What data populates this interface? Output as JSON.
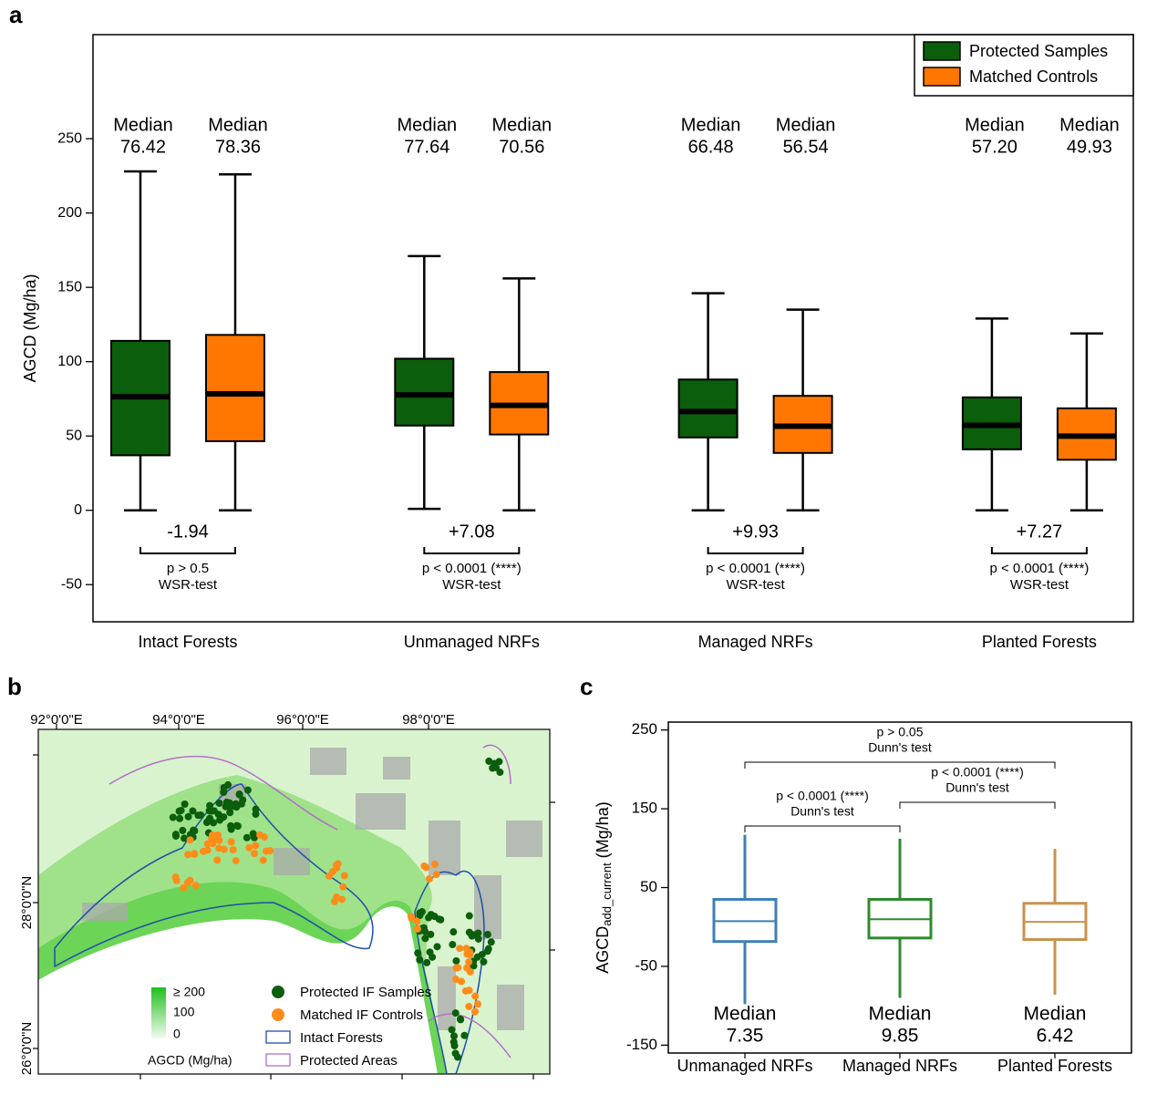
{
  "figure_labels": [
    "a",
    "b",
    "c"
  ],
  "chart_data": [
    {
      "type": "box",
      "ylabel": "AGCD (Mg/ha)",
      "categories": [
        "Intact Forests",
        "Unmanaged NRFs",
        "Managed NRFs",
        "Planted Forests"
      ],
      "ylim": [
        -75,
        320
      ],
      "yticks": [
        -50,
        0,
        50,
        100,
        150,
        200,
        250
      ],
      "median_label": "Median",
      "legend": "upper right",
      "series": [
        {
          "name": "Protected Samples",
          "color": "#0b5e0b",
          "whislo": [
            0,
            1,
            0,
            0
          ],
          "q1": [
            37,
            57,
            49,
            41
          ],
          "median": [
            76.42,
            77.64,
            66.48,
            57.2
          ],
          "median_labels": [
            "76.42",
            "77.64",
            "66.48",
            "57.20"
          ],
          "q3": [
            114,
            102,
            88,
            76
          ],
          "whishi": [
            228,
            171,
            146,
            129
          ]
        },
        {
          "name": "Matched Controls",
          "color": "#ff7700",
          "whislo": [
            0,
            0,
            0,
            0
          ],
          "q1": [
            46.5,
            51,
            38.6,
            34
          ],
          "median": [
            78.36,
            70.56,
            56.54,
            49.93
          ],
          "median_labels": [
            "78.36",
            "70.56",
            "56.54",
            "49.93"
          ],
          "q3": [
            118,
            93,
            77,
            68.6
          ],
          "whishi": [
            226,
            156,
            135,
            119
          ]
        }
      ],
      "differences": {
        "values": [
          -1.94,
          7.08,
          9.93,
          7.27
        ],
        "value_labels": [
          "-1.94",
          "+7.08",
          "+9.93",
          "+7.27"
        ]
      },
      "tests": [
        "p > 0.5",
        "p < 0.0001 (****)",
        "p < 0.0001 (****)",
        "p < 0.0001 (****)"
      ],
      "test_name": "WSR-test"
    },
    {
      "type": "box",
      "ylabel": "AGCD",
      "ylabel_subscript": "add_current",
      "ylabel_unit": "(Mg/ha)",
      "categories": [
        "Unmanaged NRFs",
        "Managed NRFs",
        "Planted Forests"
      ],
      "ylim": [
        -160,
        260
      ],
      "yticks": [
        -150,
        -50,
        50,
        150,
        250
      ],
      "median_label": "Median",
      "series": [
        {
          "colors": [
            "#3e7fb5",
            "#2e8b2e",
            "#c8924e"
          ],
          "whislo": [
            -98,
            -90,
            -86
          ],
          "q1": [
            -18.5,
            -14,
            -16
          ],
          "median": [
            7.35,
            9.85,
            6.42
          ],
          "q3": [
            35,
            35,
            30
          ],
          "whishi": [
            117,
            112,
            99
          ]
        }
      ],
      "comparisons": [
        {
          "label": "p > 0.05",
          "test": "Dunn's test"
        },
        {
          "label": "p < 0.0001 (****)",
          "test": "Dunn's test"
        },
        {
          "label": "p < 0.0001 (****)",
          "test": "Dunn's test"
        }
      ]
    }
  ],
  "map": {
    "lon_labels": [
      "92°0'0\"E",
      "94°0'0\"E",
      "96°0'0\"E",
      "98°0'0\"E"
    ],
    "lat_labels": [
      "28°0'0\"N",
      "26°0'0\"N"
    ],
    "scale_labels": [
      "≥ 200",
      "100",
      "0"
    ],
    "scale_title": "AGCD (Mg/ha)",
    "legend": [
      "Protected IF Samples",
      "Matched IF Controls",
      "Intact Forests",
      "Protected Areas"
    ]
  }
}
